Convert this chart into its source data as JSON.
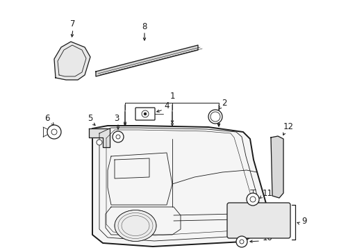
{
  "background_color": "#ffffff",
  "line_color": "#1a1a1a",
  "label_color": "#1a1a1a",
  "figsize": [
    4.89,
    3.6
  ],
  "dpi": 100,
  "lw_thick": 1.4,
  "lw_med": 0.9,
  "lw_thin": 0.6,
  "fontsize": 8.5
}
